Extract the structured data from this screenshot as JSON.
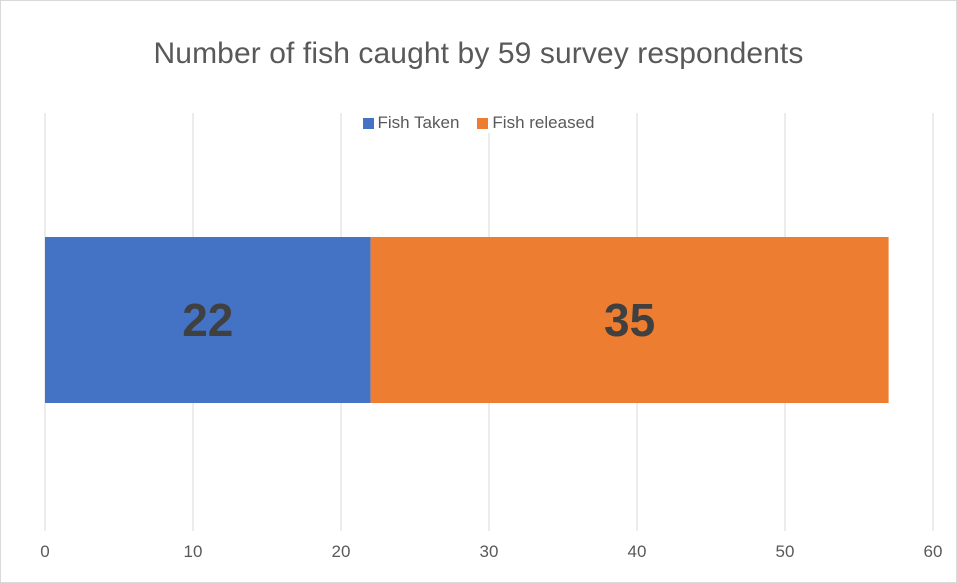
{
  "chart_data": {
    "type": "bar",
    "orientation": "horizontal",
    "stacked": true,
    "title": "Number of fish caught by 59 survey respondents",
    "categories": [
      ""
    ],
    "series": [
      {
        "name": "Fish Taken",
        "values": [
          22
        ],
        "color": "#4472c4"
      },
      {
        "name": "Fish released",
        "values": [
          35
        ],
        "color": "#ed7d31"
      }
    ],
    "xlim": [
      0,
      60
    ],
    "xticks": [
      0,
      10,
      20,
      30,
      40,
      50,
      60
    ],
    "xlabel": "",
    "ylabel": "",
    "grid": true,
    "legend_position": "top",
    "data_labels": true
  }
}
